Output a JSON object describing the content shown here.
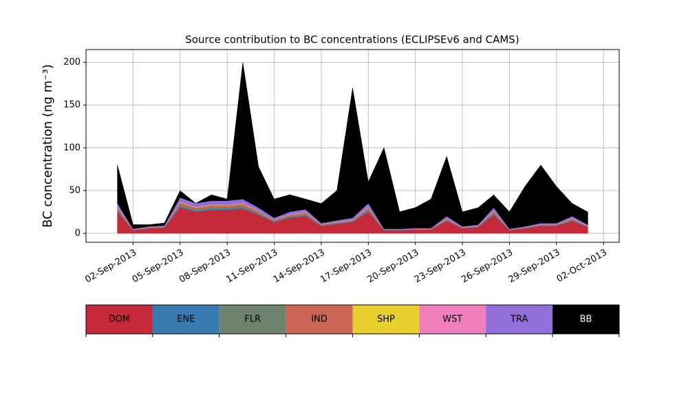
{
  "chart_data": {
    "type": "stacked_area",
    "title": "Source contribution to BC concentrations (ECLIPSEv6 and CAMS)",
    "y_label": "BC concentration (ng m⁻³)",
    "x": [
      "2013-09-01",
      "2013-09-02",
      "2013-09-03",
      "2013-09-04",
      "2013-09-05",
      "2013-09-06",
      "2013-09-07",
      "2013-09-08",
      "2013-09-09",
      "2013-09-10",
      "2013-09-11",
      "2013-09-12",
      "2013-09-13",
      "2013-09-14",
      "2013-09-15",
      "2013-09-16",
      "2013-09-17",
      "2013-09-18",
      "2013-09-19",
      "2013-09-20",
      "2013-09-21",
      "2013-09-22",
      "2013-09-23",
      "2013-09-24",
      "2013-09-25",
      "2013-09-26",
      "2013-09-27",
      "2013-09-28",
      "2013-09-29",
      "2013-09-30",
      "2013-10-01"
    ],
    "series": [
      {
        "name": "DOM",
        "color": "#c42a3a",
        "values": [
          25.2,
          3.6,
          5.8,
          6.5,
          30.2,
          25.2,
          27.4,
          27.4,
          28.8,
          21.6,
          13,
          18,
          20.2,
          8.6,
          10.8,
          13,
          25.2,
          3.6,
          3.6,
          4.3,
          4.3,
          14.4,
          5.8,
          7.2,
          21.6,
          3.6,
          5.8,
          8.6,
          8.6,
          14.4,
          7.2
        ]
      },
      {
        "name": "ENE",
        "color": "#3a7ab3",
        "values": [
          1.1,
          0.2,
          0.2,
          0.3,
          1.3,
          1.1,
          1.1,
          1.1,
          1.2,
          0.9,
          0.5,
          0.8,
          0.8,
          0.4,
          0.5,
          0.5,
          1.1,
          0.2,
          0.2,
          0.2,
          0.2,
          0.6,
          0.2,
          0.3,
          0.9,
          0.2,
          0.2,
          0.4,
          0.4,
          0.6,
          0.3
        ]
      },
      {
        "name": "FLR",
        "color": "#6f8270",
        "values": [
          1.8,
          0.3,
          0.4,
          0.5,
          2.1,
          1.8,
          1.9,
          1.9,
          2,
          1.5,
          0.9,
          1.3,
          1.4,
          0.6,
          0.8,
          0.9,
          1.8,
          0.3,
          0.3,
          0.3,
          0.3,
          1,
          0.4,
          0.5,
          1.5,
          0.3,
          0.4,
          0.6,
          0.6,
          1,
          0.5
        ]
      },
      {
        "name": "IND",
        "color": "#c96655",
        "values": [
          2.1,
          0.3,
          0.5,
          0.5,
          2.5,
          2.1,
          2.3,
          2.3,
          2.4,
          1.8,
          1.1,
          1.5,
          1.7,
          0.7,
          0.9,
          1.1,
          2.1,
          0.3,
          0.3,
          0.4,
          0.4,
          1.2,
          0.5,
          0.6,
          1.8,
          0.3,
          0.5,
          0.7,
          0.7,
          1.2,
          0.6
        ]
      },
      {
        "name": "SHP",
        "color": "#e8d02f",
        "values": [
          0.4,
          0.1,
          0.1,
          0.1,
          0.4,
          0.4,
          0.4,
          0.4,
          0.4,
          0.3,
          0.2,
          0.3,
          0.3,
          0.1,
          0.2,
          0.2,
          0.4,
          0.1,
          0.1,
          0.1,
          0.1,
          0.2,
          0.1,
          0.1,
          0.3,
          0.1,
          0.1,
          0.1,
          0.1,
          0.2,
          0.1
        ]
      },
      {
        "name": "WST",
        "color": "#f27fbd",
        "values": [
          0.4,
          0.1,
          0.1,
          0.1,
          0.4,
          0.4,
          0.4,
          0.4,
          0.4,
          0.3,
          0.2,
          0.3,
          0.3,
          0.1,
          0.2,
          0.2,
          0.4,
          0.1,
          0.1,
          0.1,
          0.1,
          0.2,
          0.1,
          0.1,
          0.3,
          0.1,
          0.1,
          0.1,
          0.1,
          0.2,
          0.1
        ]
      },
      {
        "name": "TRA",
        "color": "#9370db",
        "values": [
          4.2,
          0.6,
          1,
          1.1,
          5,
          4.2,
          4.6,
          4.6,
          4.8,
          3.6,
          2.2,
          3,
          3.4,
          1.4,
          1.8,
          2.2,
          4.2,
          0.6,
          0.6,
          0.7,
          0.7,
          2.4,
          1,
          1.2,
          3.6,
          0.6,
          1,
          1.4,
          1.4,
          2.4,
          1.2
        ]
      },
      {
        "name": "BB",
        "color": "#000000",
        "values": [
          45,
          5,
          2,
          3,
          8,
          0,
          7,
          2,
          160,
          48,
          22,
          20,
          12,
          23,
          35,
          152,
          25,
          95,
          20,
          24,
          34,
          70,
          17,
          20,
          15,
          20,
          47,
          68,
          43,
          15,
          15
        ]
      }
    ],
    "xlim": [
      "2013-08-30",
      "2013-10-03"
    ],
    "xticks": [
      {
        "value": "2013-09-02",
        "label": "02-Sep-2013"
      },
      {
        "value": "2013-09-05",
        "label": "05-Sep-2013"
      },
      {
        "value": "2013-09-08",
        "label": "08-Sep-2013"
      },
      {
        "value": "2013-09-11",
        "label": "11-Sep-2013"
      },
      {
        "value": "2013-09-14",
        "label": "14-Sep-2013"
      },
      {
        "value": "2013-09-17",
        "label": "17-Sep-2013"
      },
      {
        "value": "2013-09-20",
        "label": "20-Sep-2013"
      },
      {
        "value": "2013-09-23",
        "label": "23-Sep-2013"
      },
      {
        "value": "2013-09-26",
        "label": "26-Sep-2013"
      },
      {
        "value": "2013-09-29",
        "label": "29-Sep-2013"
      },
      {
        "value": "2013-10-02",
        "label": "02-Oct-2013"
      }
    ],
    "ylim": [
      -10.5,
      215
    ],
    "yticks": [
      0,
      50,
      100,
      150,
      200
    ],
    "grid": true
  }
}
